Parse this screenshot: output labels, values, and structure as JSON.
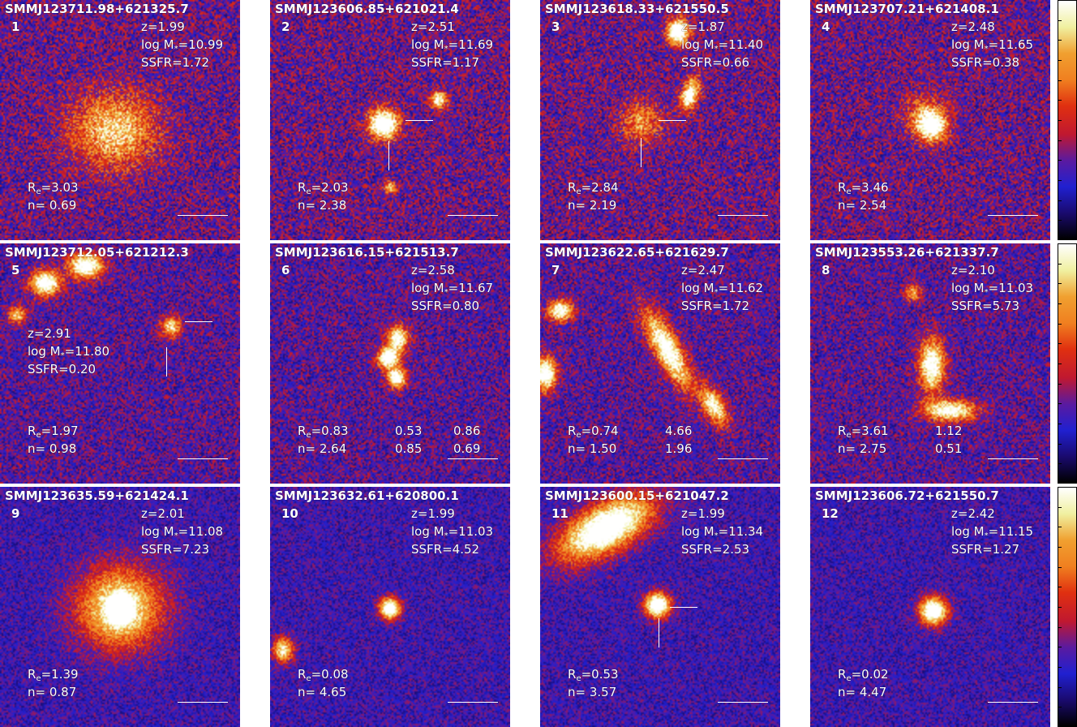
{
  "panels": [
    {
      "name": "SMMJ123711.98+621325.7",
      "num": "1",
      "z": "z=1.99",
      "mass": "10.99",
      "ssfr": "SSFR=1.72",
      "re": "=3.03",
      "n": "n= 0.69",
      "extra": []
    },
    {
      "name": "SMMJ123606.85+621021.4",
      "num": "2",
      "z": "z=2.51",
      "mass": "11.69",
      "ssfr": "SSFR=1.17",
      "re": "=2.03",
      "n": "n= 2.38",
      "extra": []
    },
    {
      "name": "SMMJ123618.33+621550.5",
      "num": "3",
      "z": "z=1.87",
      "mass": "11.40",
      "ssfr": "SSFR=0.66",
      "re": "=2.84",
      "n": "n= 2.19",
      "extra": []
    },
    {
      "name": "SMMJ123707.21+621408.1",
      "num": "4",
      "z": "z=2.48",
      "mass": "11.65",
      "ssfr": "SSFR=0.38",
      "re": "=3.46",
      "n": "n= 2.54",
      "extra": []
    },
    {
      "name": "SMMJ123712.05+621212.3",
      "num": "5",
      "z": "z=2.91",
      "mass": "11.80",
      "ssfr": "SSFR=0.20",
      "re": "=1.97",
      "n": "n= 0.98",
      "extra": []
    },
    {
      "name": "SMMJ123616.15+621513.7",
      "num": "6",
      "z": "z=2.58",
      "mass": "11.67",
      "ssfr": "SSFR=0.80",
      "re": "=0.83",
      "n": "n= 2.64",
      "extra": [
        {
          "re": "0.53",
          "n": "0.85"
        },
        {
          "re": "0.86",
          "n": "0.69"
        }
      ]
    },
    {
      "name": "SMMJ123622.65+621629.7",
      "num": "7",
      "z": "z=2.47",
      "mass": "11.62",
      "ssfr": "SSFR=1.72",
      "re": "=0.74",
      "n": "n= 1.50",
      "extra": [
        {
          "re": "4.66",
          "n": "1.96"
        }
      ]
    },
    {
      "name": "SMMJ123553.26+621337.7",
      "num": "8",
      "z": "z=2.10",
      "mass": "11.03",
      "ssfr": "SSFR=5.73",
      "re": "=3.61",
      "n": "n= 2.75",
      "extra": [
        {
          "re": "1.12",
          "n": "0.51"
        }
      ]
    },
    {
      "name": "SMMJ123635.59+621424.1",
      "num": "9",
      "z": "z=2.01",
      "mass": "11.08",
      "ssfr": "SSFR=7.23",
      "re": "=1.39",
      "n": "n= 0.87",
      "extra": []
    },
    {
      "name": "SMMJ123632.61+620800.1",
      "num": "10",
      "z": "z=1.99",
      "mass": "11.03",
      "ssfr": "SSFR=4.52",
      "re": "=0.08",
      "n": "n= 4.65",
      "extra": []
    },
    {
      "name": "SMMJ123600.15+621047.2",
      "num": "11",
      "z": "z=1.99",
      "mass": "11.34",
      "ssfr": "SSFR=2.53",
      "re": "=0.53",
      "n": "n= 3.57",
      "extra": []
    },
    {
      "name": "SMMJ123606.72+621550.7",
      "num": "12",
      "z": "z=2.42",
      "mass": "11.15",
      "ssfr": "SSFR=1.27",
      "re": "=0.02",
      "n": "n= 4.47",
      "extra": []
    }
  ],
  "labels": {
    "logm_prefix": "log M",
    "logm_sub": "*",
    "re_prefix": "R",
    "re_sub": "e"
  },
  "colors": {
    "colormap": [
      "#000000",
      "#1a0a6e",
      "#2020d0",
      "#5a1aa0",
      "#c01830",
      "#e03010",
      "#f08020",
      "#f0a030",
      "#f0f0a0",
      "#ffffff"
    ]
  }
}
